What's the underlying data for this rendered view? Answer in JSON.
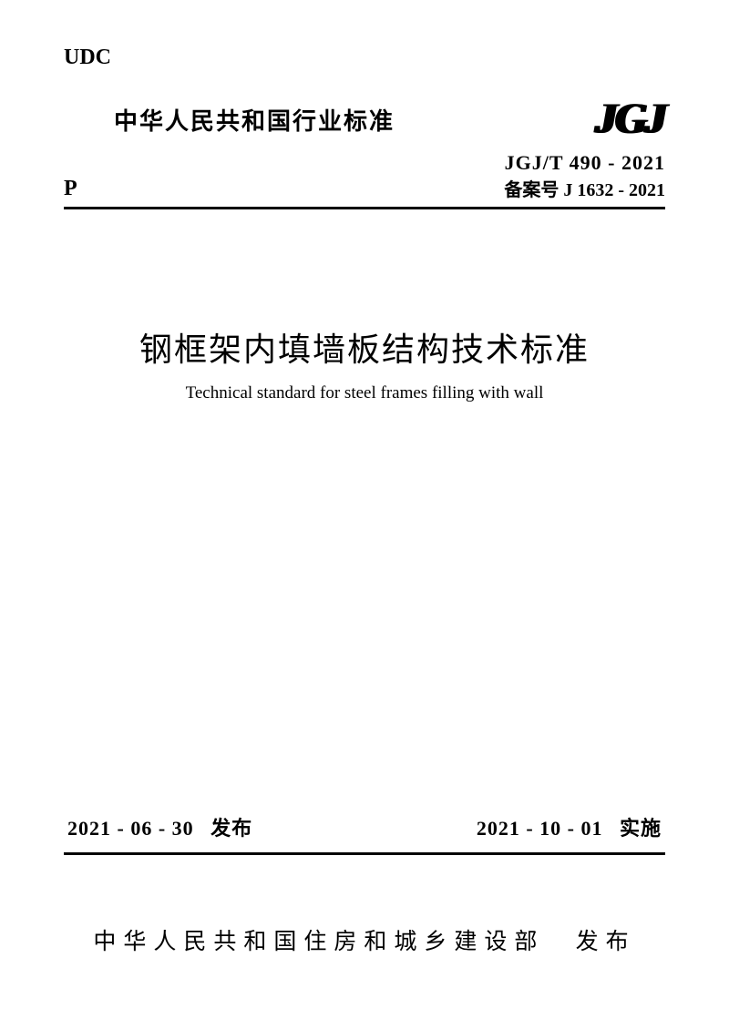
{
  "header": {
    "udc": "UDC",
    "p_label": "P",
    "industry_standard": "中华人民共和国行业标准",
    "logo": "JGJ",
    "standard_code": "JGJ/T 490 - 2021",
    "filing_code": "备案号 J 1632 - 2021"
  },
  "title": {
    "chinese": "钢框架内填墙板结构技术标准",
    "english": "Technical standard for steel frames filling with wall"
  },
  "dates": {
    "publish_date": "2021 - 06 - 30",
    "publish_label": "发布",
    "effective_date": "2021 - 10 - 01",
    "effective_label": "实施"
  },
  "issuer": {
    "organization": "中华人民共和国住房和城乡建设部",
    "action": "发布"
  }
}
